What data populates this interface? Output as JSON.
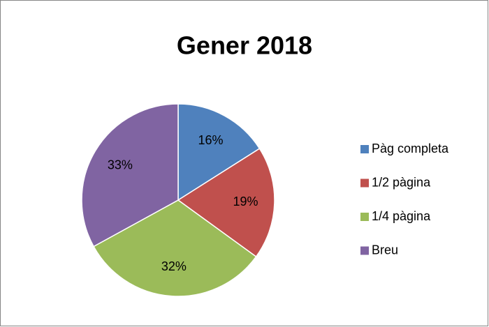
{
  "chart_data": {
    "type": "pie",
    "title": "Gener 2018",
    "categories": [
      "Pàg completa",
      "1/2 pàgina",
      "1/4 pàgina",
      "Breu"
    ],
    "values": [
      16,
      19,
      32,
      33
    ],
    "value_labels": [
      "16%",
      "19%",
      "32%",
      "33%"
    ],
    "colors": [
      "#4f81bd",
      "#c0504d",
      "#9bbb59",
      "#8064a2"
    ],
    "legend": "right"
  }
}
